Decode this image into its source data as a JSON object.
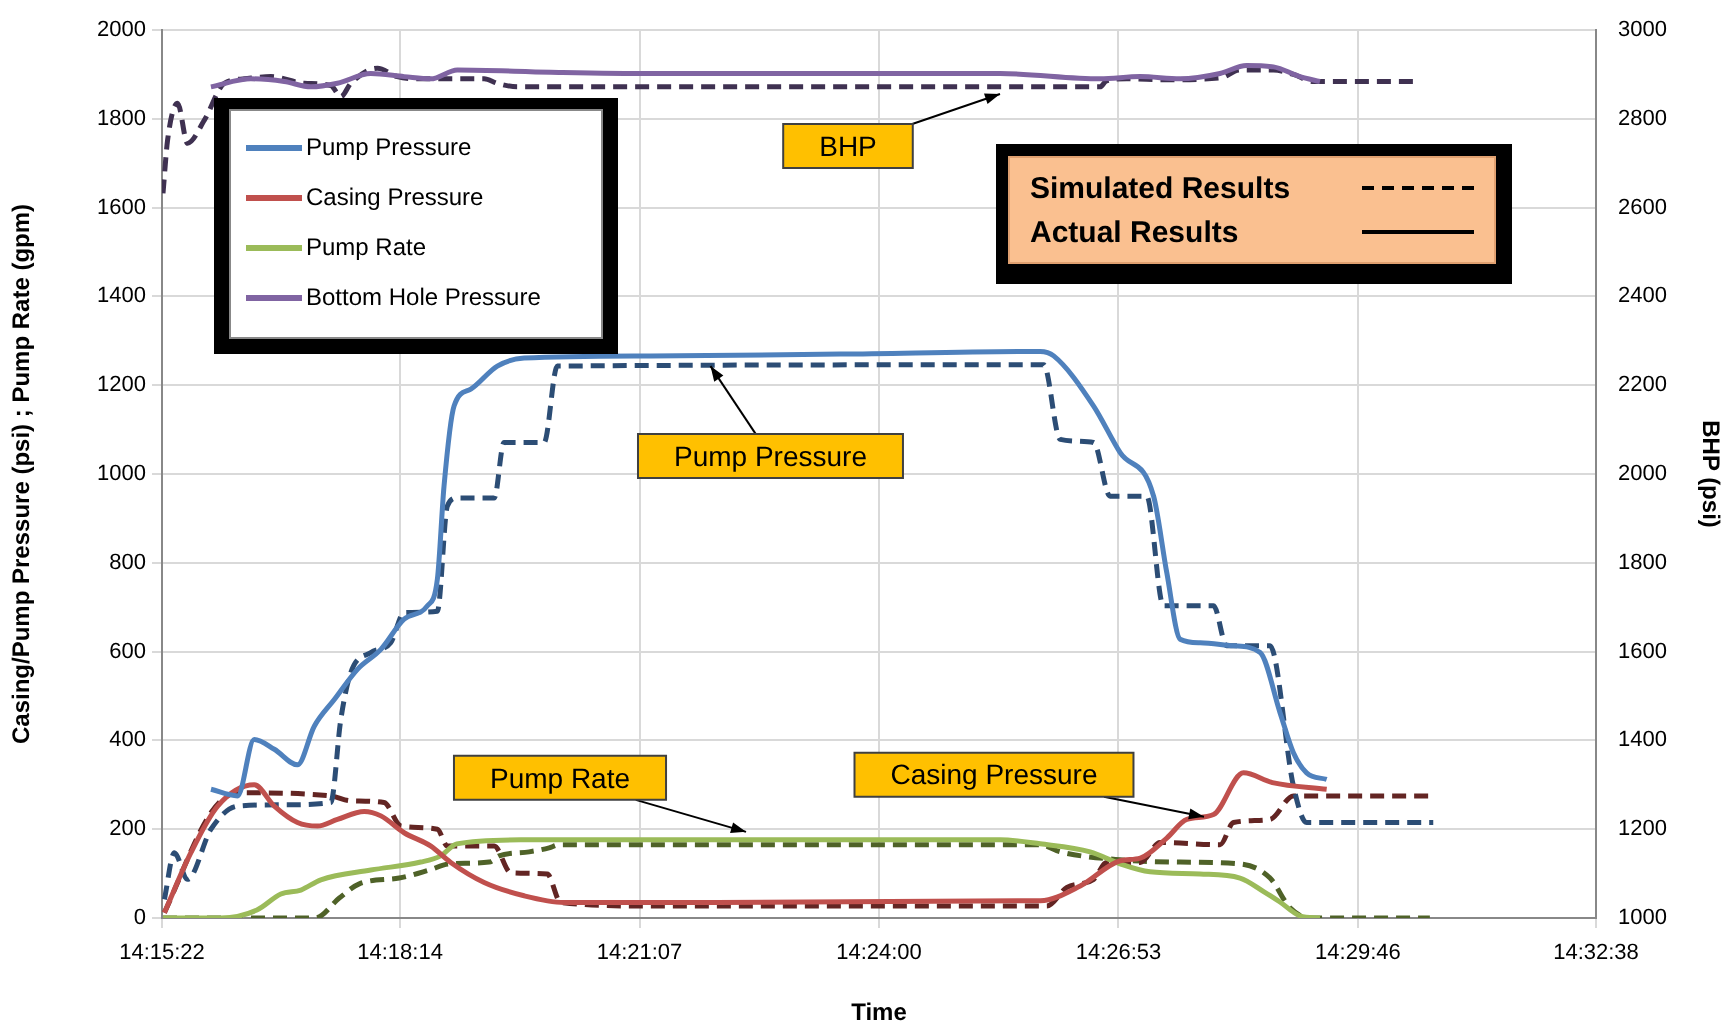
{
  "chart_data": {
    "type": "line",
    "xlabel": "Time",
    "ylabel": "Casing/Pump Pressure (psi) ; Pump Rate (gpm)",
    "y2label": "BHP (psi)",
    "xlim": [
      14.25611,
      14.54389
    ],
    "xticks": [
      {
        "value": 14.25611,
        "label": "14:15:22"
      },
      {
        "value": 14.30389,
        "label": "14:18:14"
      },
      {
        "value": 14.35194,
        "label": "14:21:07"
      },
      {
        "value": 14.4,
        "label": "14:24:00"
      },
      {
        "value": 14.44806,
        "label": "14:26:53"
      },
      {
        "value": 14.49611,
        "label": "14:29:46"
      },
      {
        "value": 14.54389,
        "label": "14:32:38"
      }
    ],
    "ylim": [
      0,
      2000
    ],
    "yticks": [
      0,
      200,
      400,
      600,
      800,
      1000,
      1200,
      1400,
      1600,
      1800,
      2000
    ],
    "y2lim": [
      1000,
      3000
    ],
    "y2ticks": [
      1000,
      1200,
      1400,
      1600,
      1800,
      2000,
      2200,
      2400,
      2600,
      2800,
      3000
    ],
    "grid": true,
    "legend": "top left",
    "marker": "none",
    "series": [
      {
        "name": "Pump Pressure",
        "color": "#4f81bd",
        "line_style": "solid",
        "x": [
          14.26594,
          14.27127,
          14.27462,
          14.27865,
          14.2833,
          14.28667,
          14.29069,
          14.29534,
          14.30004,
          14.3047,
          14.30935,
          14.31137,
          14.31271,
          14.31472,
          14.31808,
          14.3234,
          14.32878,
          14.35415,
          14.39228,
          14.43237,
          14.43506,
          14.44307,
          14.4484,
          14.45511,
          14.45775,
          14.46043,
          14.46446,
          14.47113,
          14.47649,
          14.48049,
          14.48317,
          14.48581,
          14.48984
        ],
        "values": [
          290,
          275,
          402,
          380,
          345,
          432,
          492,
          560,
          605,
          673,
          703,
          763,
          973,
          1153,
          1191,
          1243,
          1261,
          1266,
          1270,
          1276,
          1266,
          1153,
          1048,
          950,
          778,
          628,
          620,
          613,
          598,
          462,
          372,
          327,
          312
        ]
      },
      {
        "name": "Casing Pressure",
        "color": "#c0504d",
        "line_style": "solid",
        "x": [
          14.25659,
          14.26191,
          14.26728,
          14.27462,
          14.27865,
          14.2833,
          14.28734,
          14.29131,
          14.29669,
          14.30004,
          14.3047,
          14.31007,
          14.31405,
          14.32076,
          14.32878,
          14.33678,
          14.43237,
          14.44039,
          14.4484,
          14.45243,
          14.45775,
          14.46178,
          14.46714,
          14.47314,
          14.47895,
          14.48984
        ],
        "values": [
          12,
          147,
          252,
          300,
          252,
          215,
          207,
          222,
          240,
          230,
          192,
          162,
          125,
          80,
          50,
          35,
          39,
          72,
          129,
          135,
          180,
          222,
          233,
          327,
          305,
          290
        ]
      },
      {
        "name": "Pump Rate",
        "color": "#9bbb59",
        "line_style": "solid",
        "x": [
          14.25631,
          14.26794,
          14.27516,
          14.27997,
          14.28398,
          14.28799,
          14.29801,
          14.30804,
          14.31205,
          14.31526,
          14.32809,
          14.42433,
          14.43235,
          14.44238,
          14.44839,
          14.45441,
          14.46443,
          14.47245,
          14.47727,
          14.48047,
          14.48448,
          14.48849
        ],
        "values": [
          0,
          0,
          18,
          54,
          63,
          86,
          108,
          126,
          140,
          167,
          176,
          176,
          167,
          149,
          122,
          104,
          99,
          90,
          59,
          36,
          5,
          0
        ]
      },
      {
        "name": "Bottom Hole Pressure",
        "color": "#8064a2",
        "line_style": "solid",
        "axis": "y2",
        "x": [
          14.26593,
          14.27395,
          14.28065,
          14.28598,
          14.29132,
          14.29801,
          14.30471,
          14.31004,
          14.31538,
          14.33411,
          14.35415,
          14.38423,
          14.42433,
          14.44438,
          14.4524,
          14.46042,
          14.46844,
          14.47377,
          14.47915,
          14.48448,
          14.48849
        ],
        "values": [
          2872,
          2890,
          2884,
          2872,
          2880,
          2902,
          2895,
          2890,
          2910,
          2905,
          2902,
          2902,
          2902,
          2890,
          2895,
          2890,
          2902,
          2920,
          2917,
          2895,
          2884
        ]
      },
      {
        "color": "#2c4d75",
        "line_style": "dashed",
        "x": [
          14.25659,
          14.2586,
          14.26124,
          14.26594,
          14.27127,
          14.28067,
          14.28997,
          14.29199,
          14.294,
          14.29803,
          14.30201,
          14.3047,
          14.31137,
          14.31338,
          14.31539,
          14.32278,
          14.32475,
          14.3328,
          14.33544,
          14.43305,
          14.43637,
          14.44307,
          14.44638,
          14.45372,
          14.45708,
          14.46714,
          14.46978,
          14.47846,
          14.48317,
          14.48581,
          14.51123
        ],
        "values": [
          42,
          147,
          87,
          200,
          252,
          255,
          260,
          447,
          553,
          598,
          620,
          688,
          691,
          928,
          946,
          946,
          1071,
          1071,
          1243,
          1246,
          1078,
          1071,
          950,
          950,
          703,
          703,
          613,
          613,
          297,
          215,
          215
        ]
      },
      {
        "color": "#632523",
        "line_style": "dashed",
        "x": [
          14.25659,
          14.26594,
          14.27127,
          14.28997,
          14.294,
          14.30067,
          14.30407,
          14.31137,
          14.31338,
          14.32278,
          14.32609,
          14.33343,
          14.33611,
          14.35415,
          14.43367,
          14.43771,
          14.44307,
          14.44571,
          14.45243,
          14.45641,
          14.46845,
          14.47113,
          14.47846,
          14.48317,
          14.51123
        ],
        "values": [
          12,
          237,
          282,
          275,
          264,
          260,
          207,
          200,
          162,
          162,
          102,
          99,
          35,
          27,
          27,
          69,
          87,
          125,
          125,
          170,
          165,
          215,
          222,
          275,
          275
        ]
      },
      {
        "color": "#4f6228",
        "line_style": "dashed",
        "x": [
          14.25631,
          14.28688,
          14.29169,
          14.2957,
          14.30372,
          14.30974,
          14.31375,
          14.32177,
          14.32377,
          14.32979,
          14.3338,
          14.33581,
          14.43235,
          14.43636,
          14.44839,
          14.46042,
          14.47245,
          14.47847,
          14.48248,
          14.48649,
          14.51055
        ],
        "values": [
          0,
          0,
          45,
          77,
          90,
          108,
          122,
          126,
          140,
          149,
          158,
          165,
          165,
          149,
          131,
          126,
          122,
          90,
          23,
          0,
          0
        ]
      },
      {
        "color": "#3f3151",
        "line_style": "dashed",
        "axis": "y2",
        "x": [
          14.25631,
          14.25723,
          14.25924,
          14.26124,
          14.26461,
          14.26862,
          14.27263,
          14.27796,
          14.28466,
          14.28999,
          14.292,
          14.29401,
          14.29934,
          14.30335,
          14.30736,
          14.32075,
          14.3234,
          14.32741,
          14.44438,
          14.44558,
          14.44971,
          14.45773,
          14.46844,
          14.47245,
          14.47915,
          14.48316,
          14.48717,
          14.50854
        ],
        "values": [
          2632,
          2752,
          2835,
          2745,
          2797,
          2880,
          2890,
          2895,
          2880,
          2875,
          2850,
          2880,
          2914,
          2895,
          2890,
          2890,
          2880,
          2872,
          2872,
          2885,
          2890,
          2888,
          2892,
          2910,
          2910,
          2900,
          2884,
          2884
        ]
      }
    ],
    "annotations": [
      {
        "text": "BHP",
        "x": 14.42428,
        "y": 1856
      },
      {
        "text": "Pump Pressure",
        "x": 14.36618,
        "y": 1243
      },
      {
        "text": "Pump Rate",
        "x": 14.37331,
        "y": 194
      },
      {
        "text": "Casing Pressure",
        "x": 14.46522,
        "y": 228
      },
      "Simulated Results",
      "Actual Results"
    ]
  }
}
